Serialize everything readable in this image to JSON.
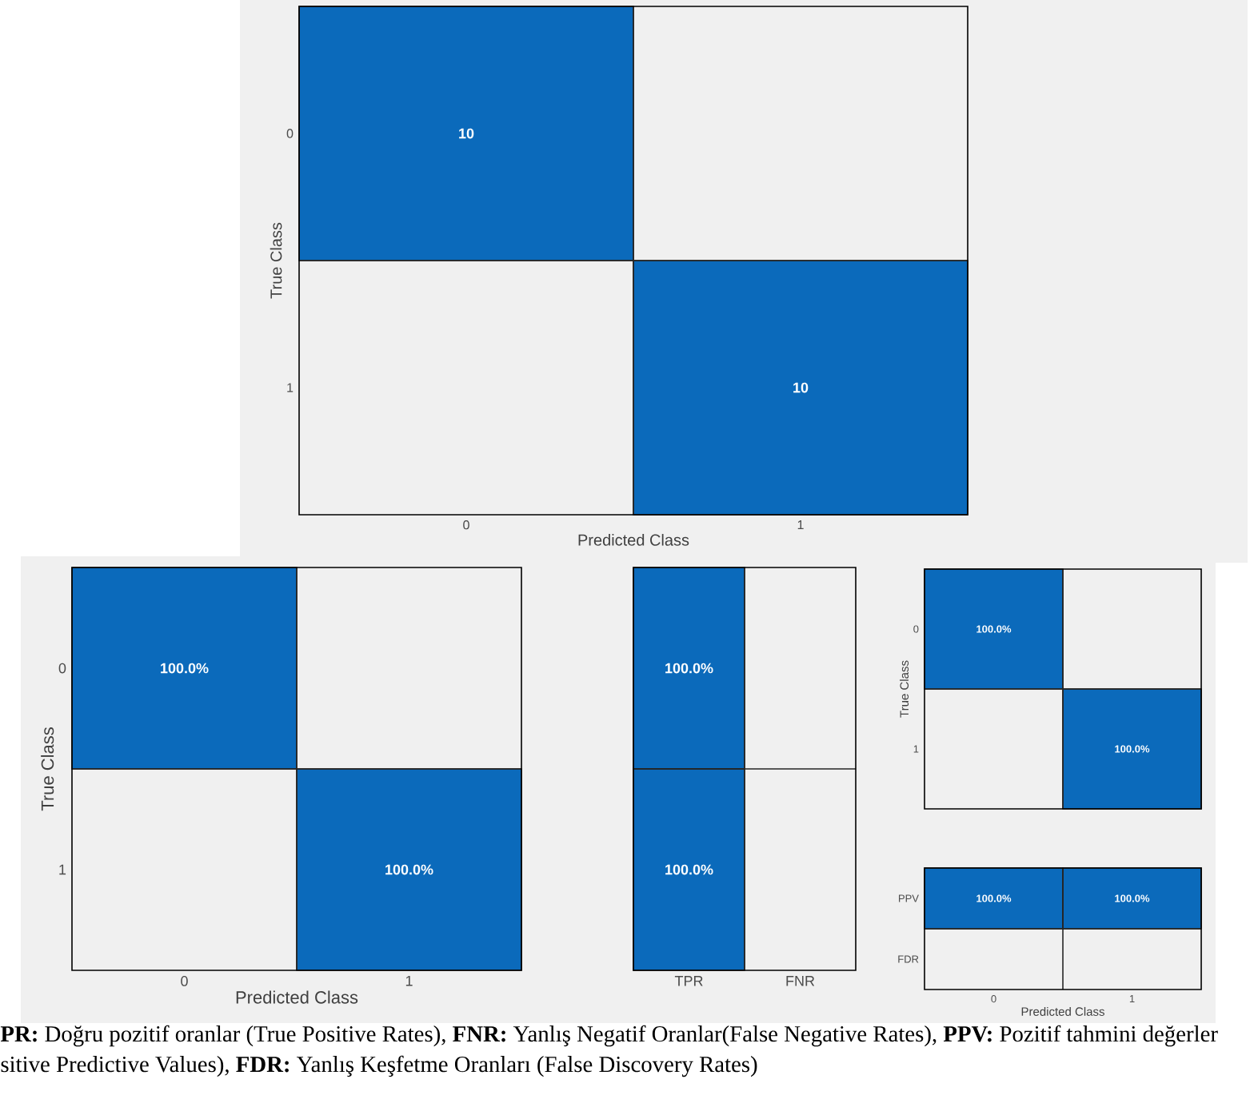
{
  "chart_data": [
    {
      "type": "heatmap",
      "categories": [
        "0",
        "1"
      ],
      "y_categories": [
        "0",
        "1"
      ],
      "cells": [
        [
          10,
          null
        ],
        [
          null,
          10
        ]
      ],
      "data_labels": true,
      "color": "#0b6abb",
      "xlabel": "Predicted Class",
      "ylabel": "True Class",
      "annotations": [
        "**PR:** Doğru pozitif oranlar (True Positive Rates), **FNR:** Yanlış Negatif Oranlar(False Negative Rates), **PPV:** Pozitif tahmini değerler",
        "sitive Predictive Values), **FDR:** Yanlış  Keşfetme Oranları (False Discovery Rates)"
      ]
    },
    {
      "type": "heatmap",
      "categories": [
        "0",
        "1"
      ],
      "y_categories": [
        "0",
        "1"
      ],
      "cells": [
        [
          100,
          null
        ],
        [
          null,
          100
        ]
      ],
      "cell_labels": [
        [
          "100.0%",
          null
        ],
        [
          null,
          "100.0%"
        ]
      ],
      "color": "#0b6abb",
      "xlabel": "Predicted Class",
      "ylabel": "True Class"
    },
    {
      "type": "heatmap",
      "categories": [
        "TPR",
        "FNR"
      ],
      "y_categories": [
        null,
        null
      ],
      "cells": [
        [
          100,
          null
        ],
        [
          100,
          null
        ]
      ],
      "cell_labels": [
        [
          "100.0%",
          null
        ],
        [
          "100.0%",
          null
        ]
      ],
      "color": "#0b6abb"
    },
    {
      "type": "heatmap",
      "categories": [
        "0",
        "1"
      ],
      "tick_labels": "y",
      "y_categories": [
        "0",
        "1"
      ],
      "cells": [
        [
          100,
          null
        ],
        [
          null,
          100
        ]
      ],
      "cell_labels": [
        [
          "100.0%",
          null
        ],
        [
          null,
          "100.0%"
        ]
      ],
      "color": "#0b6abb",
      "ylabel": "True Class"
    },
    {
      "type": "heatmap",
      "categories": [
        "0",
        "1"
      ],
      "y_categories": [
        "PPV",
        "FDR"
      ],
      "cells": [
        [
          100,
          100
        ],
        [
          null,
          null
        ]
      ],
      "cell_labels": [
        [
          "100.0%",
          "100.0%"
        ],
        [
          null,
          null
        ]
      ],
      "color": "#0b6abb",
      "xlabel": "Predicted Class"
    }
  ]
}
